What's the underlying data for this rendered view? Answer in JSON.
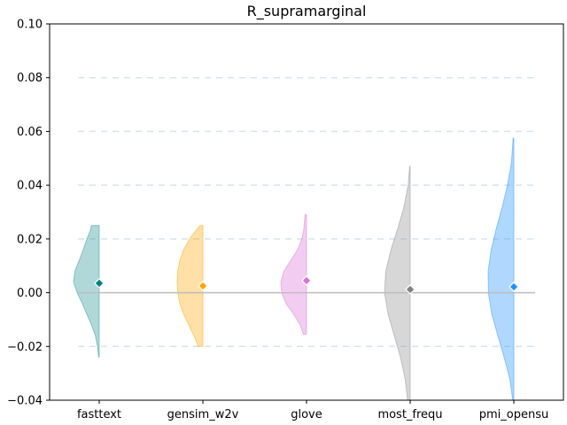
{
  "chart_data": {
    "type": "violin",
    "title": "R_supramarginal",
    "xlabel": "",
    "ylabel": "",
    "categories": [
      "fasttext",
      "gensim_w2v",
      "glove",
      "most_frequ",
      "pmi_opensu"
    ],
    "ylim": [
      -0.04,
      0.1
    ],
    "yticks": [
      -0.04,
      -0.02,
      0.0,
      0.02,
      0.04,
      0.06,
      0.08,
      0.1
    ],
    "ytick_labels": [
      "−0.04",
      "−0.02",
      "0.00",
      "0.02",
      "0.04",
      "0.06",
      "0.08",
      "0.10"
    ],
    "grid": "horizontal dashed",
    "reference_line": 0.0,
    "series": [
      {
        "category": "fasttext",
        "side": "left",
        "color": "#1f8f8f",
        "marker_color": "#008080",
        "mean": 0.0035,
        "range": [
          -0.024,
          0.025
        ],
        "profile": [
          [
            -0.024,
            0.02
          ],
          [
            -0.02,
            0.07
          ],
          [
            -0.016,
            0.15
          ],
          [
            -0.012,
            0.3
          ],
          [
            -0.008,
            0.48
          ],
          [
            -0.004,
            0.66
          ],
          [
            0.0,
            0.86
          ],
          [
            0.004,
            1.0
          ],
          [
            0.008,
            0.95
          ],
          [
            0.012,
            0.78
          ],
          [
            0.016,
            0.62
          ],
          [
            0.02,
            0.48
          ],
          [
            0.023,
            0.35
          ],
          [
            0.025,
            0.3
          ]
        ]
      },
      {
        "category": "gensim_w2v",
        "side": "left",
        "color": "#ffa500",
        "marker_color": "#ffa500",
        "mean": 0.0025,
        "range": [
          -0.02,
          0.025
        ],
        "profile": [
          [
            -0.02,
            0.18
          ],
          [
            -0.016,
            0.35
          ],
          [
            -0.012,
            0.55
          ],
          [
            -0.008,
            0.75
          ],
          [
            -0.004,
            0.9
          ],
          [
            0.0,
            0.98
          ],
          [
            0.004,
            1.0
          ],
          [
            0.008,
            0.98
          ],
          [
            0.012,
            0.9
          ],
          [
            0.016,
            0.75
          ],
          [
            0.02,
            0.52
          ],
          [
            0.023,
            0.28
          ],
          [
            0.025,
            0.12
          ]
        ]
      },
      {
        "category": "glove",
        "side": "left",
        "color": "#da70d6",
        "marker_color": "#da70d6",
        "mean": 0.0045,
        "range": [
          -0.0155,
          0.029
        ],
        "profile": [
          [
            -0.0155,
            0.12
          ],
          [
            -0.012,
            0.25
          ],
          [
            -0.008,
            0.5
          ],
          [
            -0.004,
            0.8
          ],
          [
            0.0,
            0.97
          ],
          [
            0.004,
            1.0
          ],
          [
            0.008,
            0.88
          ],
          [
            0.012,
            0.62
          ],
          [
            0.016,
            0.35
          ],
          [
            0.02,
            0.18
          ],
          [
            0.024,
            0.1
          ],
          [
            0.029,
            0.06
          ]
        ]
      },
      {
        "category": "most_frequ",
        "side": "left",
        "color": "#8c8c8c",
        "marker_color": "#808080",
        "mean": 0.0012,
        "range": [
          -0.04,
          0.047
        ],
        "profile": [
          [
            -0.04,
            0.1
          ],
          [
            -0.032,
            0.2
          ],
          [
            -0.024,
            0.38
          ],
          [
            -0.016,
            0.62
          ],
          [
            -0.008,
            0.86
          ],
          [
            0.0,
            1.0
          ],
          [
            0.008,
            0.95
          ],
          [
            0.016,
            0.75
          ],
          [
            0.024,
            0.48
          ],
          [
            0.032,
            0.24
          ],
          [
            0.04,
            0.08
          ],
          [
            0.047,
            0.02
          ]
        ]
      },
      {
        "category": "pmi_opensu",
        "side": "left",
        "color": "#1e90ff",
        "marker_color": "#1e90ff",
        "mean": 0.0022,
        "range": [
          -0.04,
          0.0575
        ],
        "profile": [
          [
            -0.04,
            0.04
          ],
          [
            -0.032,
            0.16
          ],
          [
            -0.024,
            0.38
          ],
          [
            -0.016,
            0.62
          ],
          [
            -0.008,
            0.86
          ],
          [
            0.0,
            0.99
          ],
          [
            0.008,
            1.0
          ],
          [
            0.016,
            0.88
          ],
          [
            0.024,
            0.68
          ],
          [
            0.032,
            0.45
          ],
          [
            0.04,
            0.25
          ],
          [
            0.048,
            0.1
          ],
          [
            0.055,
            0.04
          ],
          [
            0.0575,
            0.03
          ]
        ]
      }
    ]
  }
}
